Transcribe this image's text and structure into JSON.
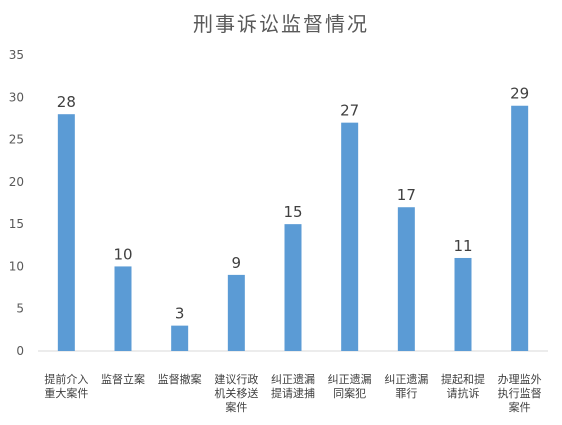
{
  "chart_data": {
    "type": "bar",
    "title": "刑事诉讼监督情况",
    "categories": [
      [
        "提前介入",
        "重大案件"
      ],
      [
        "监督立案"
      ],
      [
        "监督撤案"
      ],
      [
        "建议行政",
        "机关移送",
        "案件"
      ],
      [
        "纠正遗漏",
        "提请逮捕"
      ],
      [
        "纠正遗漏",
        "同案犯"
      ],
      [
        "纠正遗漏",
        "罪行"
      ],
      [
        "提起和提",
        "请抗诉"
      ],
      [
        "办理监外",
        "执行监督",
        "案件"
      ]
    ],
    "values": [
      28,
      10,
      3,
      9,
      15,
      27,
      17,
      11,
      29
    ],
    "ylim": [
      0,
      35
    ],
    "yticks": [
      0,
      5,
      10,
      15,
      20,
      25,
      30,
      35
    ],
    "grid": false,
    "legend": "none",
    "bar_color": "#5B9BD5",
    "axis_color": "#D9D9D9"
  }
}
